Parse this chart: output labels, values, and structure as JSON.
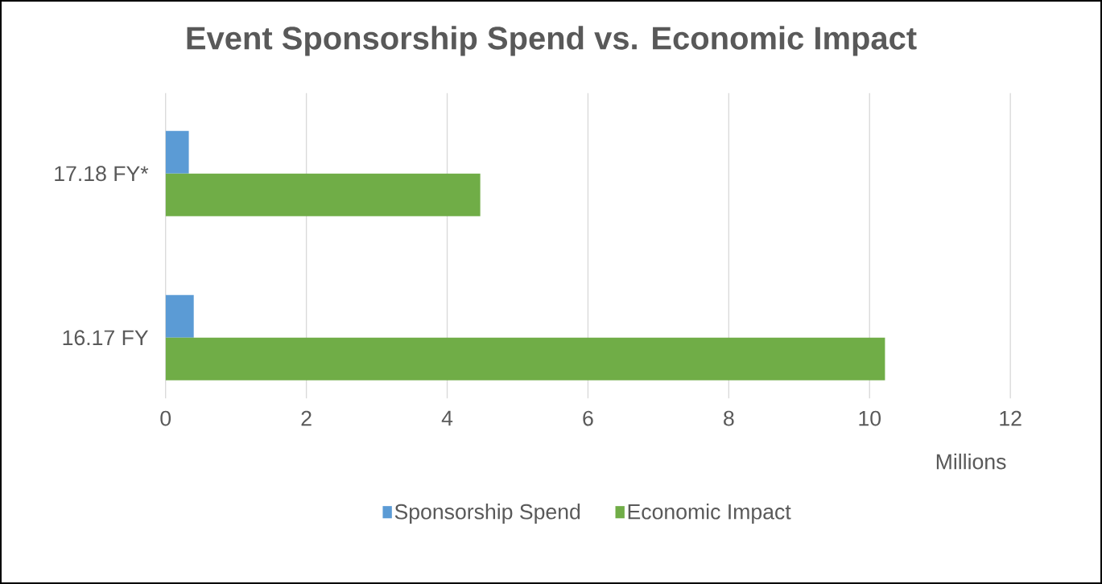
{
  "chart_data": {
    "type": "bar",
    "orientation": "horizontal",
    "title": "Event Sponsorship Spend vs. Economic Impact",
    "xlabel": "Millions",
    "categories": [
      "17.18 FY*",
      "16.17 FY"
    ],
    "series": [
      {
        "name": "Sponsorship Spend",
        "color": "#5b9bd5",
        "values": [
          0.33,
          0.4
        ]
      },
      {
        "name": "Economic Impact",
        "color": "#70ad47",
        "values": [
          4.47,
          10.22
        ]
      }
    ],
    "xlim": [
      0,
      12
    ],
    "xticks": [
      0,
      2,
      4,
      6,
      8,
      10,
      12
    ],
    "grid": "x",
    "legend": "bottom"
  }
}
